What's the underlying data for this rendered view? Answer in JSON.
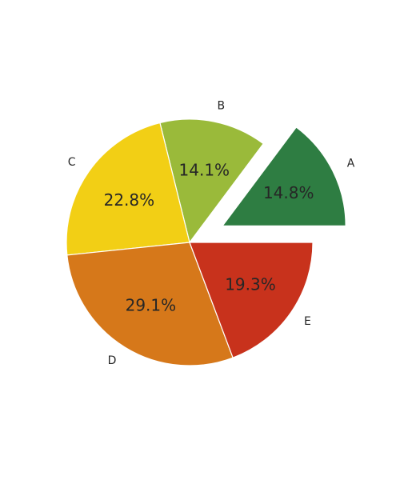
{
  "chart_data": {
    "type": "pie",
    "categories": [
      "A",
      "B",
      "C",
      "D",
      "E"
    ],
    "values": [
      14.8,
      14.1,
      22.8,
      29.1,
      19.3
    ],
    "value_labels": [
      "14.8%",
      "14.1%",
      "22.8%",
      "29.1%",
      "19.3%"
    ],
    "colors": [
      "#2e7d42",
      "#9aba3a",
      "#f2cf15",
      "#d6781a",
      "#c8321c"
    ],
    "explode": [
      "A"
    ],
    "start_angle_deg": 0,
    "direction": "counterclockwise"
  }
}
